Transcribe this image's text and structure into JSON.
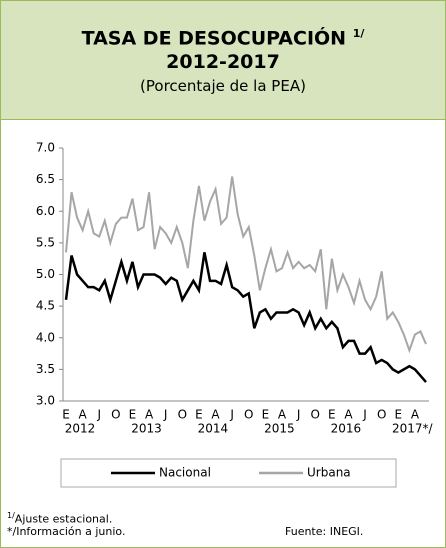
{
  "chart_data": {
    "type": "line",
    "title": "TASA DE DESOCUPACIÓN",
    "title_superscript": "1/",
    "subtitle": "2012-2017",
    "unit_note": "(Porcentaje de la PEA)",
    "categories": [
      "E",
      null,
      null,
      "A",
      null,
      null,
      "J",
      null,
      null,
      "O",
      null,
      null,
      "E",
      null,
      null,
      "A",
      null,
      null,
      "J",
      null,
      null,
      "O",
      null,
      null,
      "E",
      null,
      null,
      "A",
      null,
      null,
      "J",
      null,
      null,
      "O",
      null,
      null,
      "E",
      null,
      null,
      "A",
      null,
      null,
      "J",
      null,
      null,
      "O",
      null,
      null,
      "E",
      null,
      null,
      "A",
      null,
      null,
      "J",
      null,
      null,
      "O",
      null,
      null,
      "E",
      null,
      null,
      "A",
      null,
      null
    ],
    "years": [
      "2012",
      "2013",
      "2014",
      "2015",
      "2016",
      "2017*/"
    ],
    "series": [
      {
        "name": "Nacional",
        "color": "#000000",
        "values": [
          4.6,
          5.3,
          5.0,
          4.9,
          4.8,
          4.8,
          4.75,
          4.9,
          4.6,
          4.9,
          5.2,
          4.9,
          5.2,
          4.8,
          5.0,
          5.0,
          5.0,
          4.95,
          4.85,
          4.95,
          4.9,
          4.6,
          4.75,
          4.9,
          4.75,
          5.35,
          4.9,
          4.9,
          4.85,
          5.15,
          4.8,
          4.75,
          4.65,
          4.7,
          4.15,
          4.4,
          4.45,
          4.3,
          4.4,
          4.4,
          4.4,
          4.45,
          4.4,
          4.2,
          4.4,
          4.15,
          4.3,
          4.15,
          4.25,
          4.15,
          3.85,
          3.95,
          3.95,
          3.75,
          3.75,
          3.85,
          3.6,
          3.65,
          3.6,
          3.5,
          3.45,
          3.5,
          3.55,
          3.5,
          3.4,
          3.3
        ]
      },
      {
        "name": "Urbana",
        "color": "#a6a6a6",
        "values": [
          5.35,
          6.3,
          5.9,
          5.7,
          6.0,
          5.65,
          5.6,
          5.85,
          5.5,
          5.8,
          5.9,
          5.9,
          6.2,
          5.7,
          5.75,
          6.3,
          5.4,
          5.75,
          5.65,
          5.5,
          5.75,
          5.5,
          5.1,
          5.85,
          6.4,
          5.85,
          6.15,
          6.35,
          5.8,
          5.9,
          6.55,
          5.95,
          5.6,
          5.75,
          5.3,
          4.75,
          5.1,
          5.4,
          5.05,
          5.1,
          5.35,
          5.1,
          5.2,
          5.1,
          5.15,
          5.05,
          5.4,
          4.45,
          5.25,
          4.75,
          5.0,
          4.8,
          4.55,
          4.9,
          4.6,
          4.45,
          4.65,
          5.05,
          4.3,
          4.4,
          4.25,
          4.05,
          3.8,
          4.05,
          4.1,
          3.9
        ]
      }
    ],
    "ylim": [
      3.0,
      7.0
    ],
    "yticks": [
      {
        "value": 3,
        "label": "3.0"
      },
      3.5,
      {
        "value": 4,
        "label": "4.0"
      },
      4.5,
      {
        "value": 5,
        "label": "5.0"
      },
      5.5,
      {
        "value": 6,
        "label": "6.0"
      },
      6.5,
      {
        "value": 7,
        "label": "7.0"
      }
    ],
    "grid": false,
    "footnotes": [
      {
        "marker": "1/",
        "text": "Ajuste estacional."
      },
      {
        "marker": "*/",
        "text": "Información a junio."
      }
    ],
    "source": "Fuente: INEGI."
  }
}
